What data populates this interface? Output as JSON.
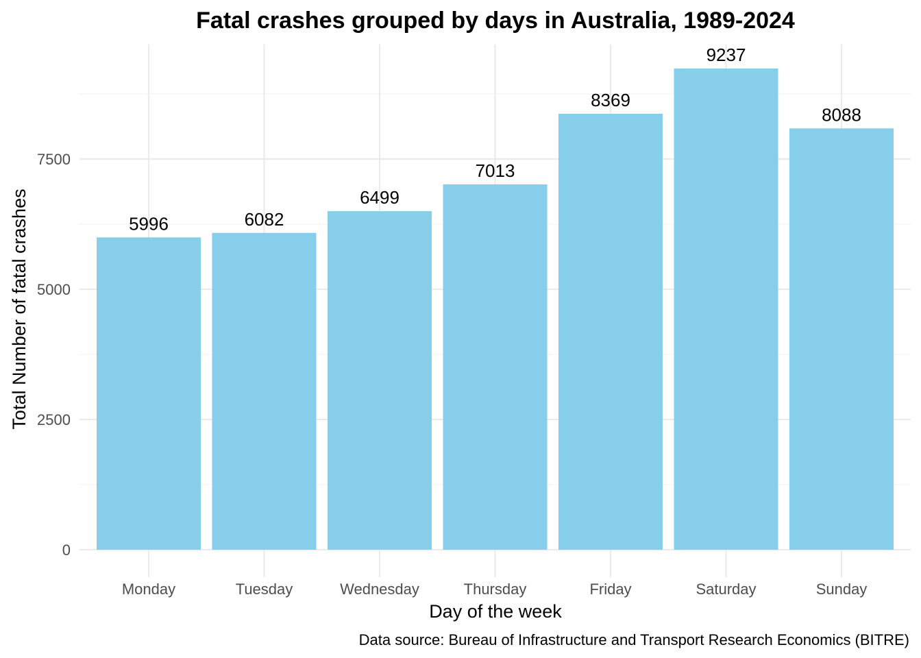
{
  "chart_data": {
    "type": "bar",
    "title": "Fatal crashes grouped by days in Australia, 1989-2024",
    "xlabel": "Day of the week",
    "ylabel": "Total Number of fatal crashes",
    "caption": "Data source: Bureau of Infrastructure and Transport Research Economics (BITRE)",
    "categories": [
      "Monday",
      "Tuesday",
      "Wednesday",
      "Thursday",
      "Friday",
      "Saturday",
      "Sunday"
    ],
    "values": [
      5996,
      6082,
      6499,
      7013,
      8369,
      9237,
      8088
    ],
    "data_labels": [
      "5996",
      "6082",
      "6499",
      "7013",
      "8369",
      "9237",
      "8088"
    ],
    "ylim": [
      0,
      9700
    ],
    "yticks": [
      0,
      2500,
      5000,
      7500
    ],
    "ytick_labels": [
      "0",
      "2500",
      "5000",
      "7500"
    ],
    "grid": true,
    "legend": "none",
    "colors": {
      "bar": "#87CEEB",
      "grid_major": "#EBEBEB",
      "grid_minor": "#F2F2F2",
      "tick_text": "#4D4D4D",
      "text": "#000000"
    }
  }
}
